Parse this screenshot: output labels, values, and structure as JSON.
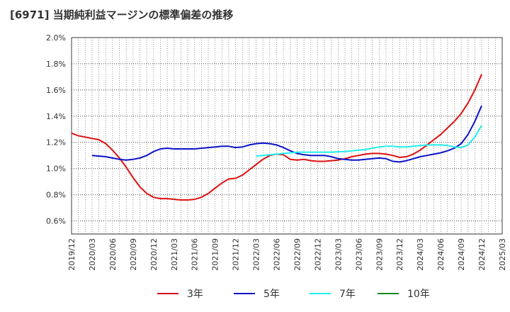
{
  "chart_data": {
    "type": "line",
    "title": "[6971]  当期純利益マージンの標準偏差の推移",
    "xlabel": "",
    "ylabel": "",
    "x_range": [
      "2019-12",
      "2025-03"
    ],
    "ylim": [
      0.5,
      2.0
    ],
    "y_ticks": [
      "0.6%",
      "0.8%",
      "1.0%",
      "1.2%",
      "1.4%",
      "1.6%",
      "1.8%",
      "2.0%"
    ],
    "y_tick_values": [
      0.6,
      0.8,
      1.0,
      1.2,
      1.4,
      1.6,
      1.8,
      2.0
    ],
    "x_ticks": [
      "2019/12",
      "2020/03",
      "2020/06",
      "2020/09",
      "2020/12",
      "2021/03",
      "2021/06",
      "2021/09",
      "2021/12",
      "2022/03",
      "2022/06",
      "2022/09",
      "2022/12",
      "2023/03",
      "2023/06",
      "2023/09",
      "2023/12",
      "2024/03",
      "2024/06",
      "2024/09",
      "2024/12",
      "2025/03"
    ],
    "grid": "dotted",
    "legend_position": "bottom",
    "series": [
      {
        "name": "3年",
        "color": "#dd1111",
        "x": [
          "2019-12",
          "2020-01",
          "2020-02",
          "2020-03",
          "2020-04",
          "2020-05",
          "2020-06",
          "2020-07",
          "2020-08",
          "2020-09",
          "2020-10",
          "2020-11",
          "2020-12",
          "2021-01",
          "2021-02",
          "2021-03",
          "2021-04",
          "2021-05",
          "2021-06",
          "2021-07",
          "2021-08",
          "2021-09",
          "2021-10",
          "2021-11",
          "2021-12",
          "2022-01",
          "2022-02",
          "2022-03",
          "2022-04",
          "2022-05",
          "2022-06",
          "2022-07",
          "2022-08",
          "2022-09",
          "2022-10",
          "2022-11",
          "2022-12",
          "2023-01",
          "2023-02",
          "2023-03",
          "2023-04",
          "2023-05",
          "2023-06",
          "2023-07",
          "2023-08",
          "2023-09",
          "2023-10",
          "2023-11",
          "2023-12",
          "2024-01",
          "2024-02",
          "2024-03",
          "2024-04",
          "2024-05",
          "2024-06",
          "2024-07",
          "2024-08",
          "2024-09",
          "2024-10",
          "2024-11",
          "2024-12"
        ],
        "values": [
          1.27,
          1.25,
          1.24,
          1.23,
          1.22,
          1.19,
          1.14,
          1.08,
          1.01,
          0.93,
          0.86,
          0.81,
          0.78,
          0.77,
          0.77,
          0.765,
          0.76,
          0.76,
          0.765,
          0.78,
          0.81,
          0.85,
          0.89,
          0.92,
          0.925,
          0.95,
          0.99,
          1.03,
          1.07,
          1.1,
          1.11,
          1.105,
          1.07,
          1.065,
          1.07,
          1.06,
          1.055,
          1.055,
          1.06,
          1.065,
          1.075,
          1.09,
          1.1,
          1.11,
          1.115,
          1.115,
          1.11,
          1.1,
          1.085,
          1.09,
          1.11,
          1.14,
          1.18,
          1.22,
          1.26,
          1.31,
          1.36,
          1.42,
          1.5,
          1.6,
          1.72
        ]
      },
      {
        "name": "5年",
        "color": "#0b13c8",
        "x": [
          "2020-03",
          "2020-04",
          "2020-05",
          "2020-06",
          "2020-07",
          "2020-08",
          "2020-09",
          "2020-10",
          "2020-11",
          "2020-12",
          "2021-01",
          "2021-02",
          "2021-03",
          "2021-04",
          "2021-05",
          "2021-06",
          "2021-07",
          "2021-08",
          "2021-09",
          "2021-10",
          "2021-11",
          "2021-12",
          "2022-01",
          "2022-02",
          "2022-03",
          "2022-04",
          "2022-05",
          "2022-06",
          "2022-07",
          "2022-08",
          "2022-09",
          "2022-10",
          "2022-11",
          "2022-12",
          "2023-01",
          "2023-02",
          "2023-03",
          "2023-04",
          "2023-05",
          "2023-06",
          "2023-07",
          "2023-08",
          "2023-09",
          "2023-10",
          "2023-11",
          "2023-12",
          "2024-01",
          "2024-02",
          "2024-03",
          "2024-04",
          "2024-05",
          "2024-06",
          "2024-07",
          "2024-08",
          "2024-09",
          "2024-10",
          "2024-11",
          "2024-12"
        ],
        "values": [
          1.1,
          1.095,
          1.09,
          1.08,
          1.07,
          1.065,
          1.07,
          1.08,
          1.1,
          1.13,
          1.15,
          1.155,
          1.15,
          1.15,
          1.15,
          1.15,
          1.155,
          1.16,
          1.165,
          1.17,
          1.17,
          1.16,
          1.165,
          1.18,
          1.19,
          1.195,
          1.19,
          1.18,
          1.16,
          1.135,
          1.115,
          1.105,
          1.1,
          1.1,
          1.1,
          1.09,
          1.075,
          1.07,
          1.065,
          1.065,
          1.07,
          1.075,
          1.08,
          1.075,
          1.055,
          1.05,
          1.06,
          1.075,
          1.09,
          1.1,
          1.11,
          1.12,
          1.135,
          1.155,
          1.19,
          1.26,
          1.36,
          1.48
        ]
      },
      {
        "name": "7年",
        "color": "#22eeee",
        "x": [
          "2022-03",
          "2022-04",
          "2022-05",
          "2022-06",
          "2022-07",
          "2022-08",
          "2022-09",
          "2022-10",
          "2022-11",
          "2022-12",
          "2023-01",
          "2023-02",
          "2023-03",
          "2023-04",
          "2023-05",
          "2023-06",
          "2023-07",
          "2023-08",
          "2023-09",
          "2023-10",
          "2023-11",
          "2023-12",
          "2024-01",
          "2024-02",
          "2024-03",
          "2024-04",
          "2024-05",
          "2024-06",
          "2024-07",
          "2024-08",
          "2024-09",
          "2024-10",
          "2024-11",
          "2024-12"
        ],
        "values": [
          1.095,
          1.1,
          1.105,
          1.11,
          1.115,
          1.12,
          1.125,
          1.125,
          1.125,
          1.125,
          1.125,
          1.125,
          1.128,
          1.13,
          1.135,
          1.14,
          1.145,
          1.155,
          1.165,
          1.17,
          1.17,
          1.165,
          1.165,
          1.17,
          1.175,
          1.18,
          1.18,
          1.18,
          1.175,
          1.165,
          1.16,
          1.18,
          1.24,
          1.33
        ]
      },
      {
        "name": "10年",
        "color": "#1a8a1a",
        "x": [],
        "values": []
      }
    ]
  }
}
